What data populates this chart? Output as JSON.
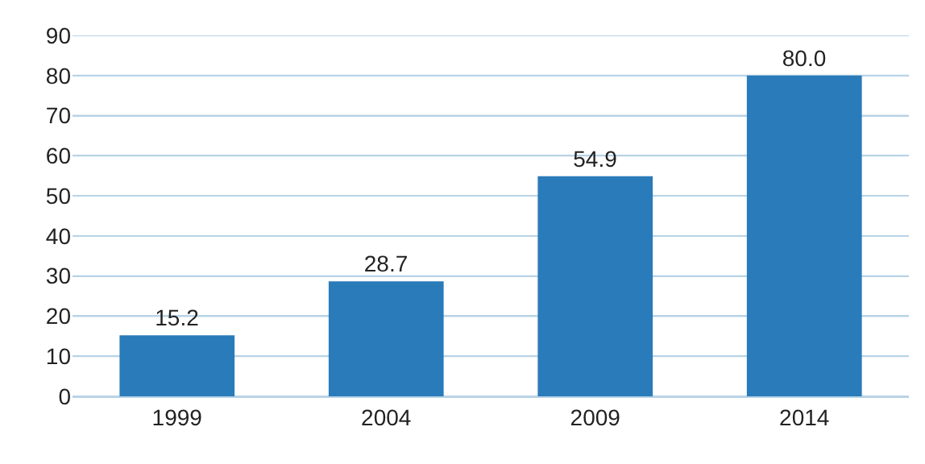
{
  "chart_data": {
    "type": "bar",
    "categories": [
      "1999",
      "2004",
      "2009",
      "2014"
    ],
    "values": [
      15.2,
      28.7,
      54.9,
      80.0
    ],
    "value_labels": [
      "15.2",
      "28.7",
      "54.9",
      "80.0"
    ],
    "color": "#2a7bb9",
    "ylim": [
      0,
      90
    ],
    "yticks": [
      0,
      10,
      20,
      30,
      40,
      50,
      60,
      70,
      80,
      90
    ],
    "grid": "y"
  }
}
